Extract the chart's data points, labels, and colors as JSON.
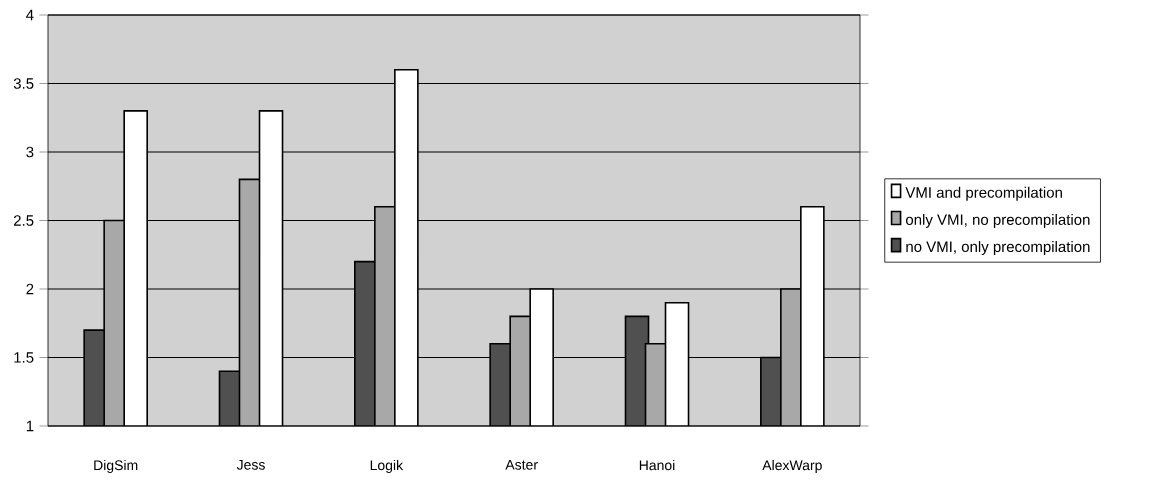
{
  "chart_data": {
    "type": "bar",
    "categories": [
      "DigSim",
      "Jess",
      "Logik",
      "Aster",
      "Hanoi",
      "AlexWarp"
    ],
    "series": [
      {
        "name": "no VMI, only precompilation",
        "color": "#505050",
        "values": [
          1.7,
          1.4,
          2.2,
          1.6,
          1.8,
          1.5
        ]
      },
      {
        "name": "only VMI, no precompilation",
        "color": "#a8a8a8",
        "values": [
          2.5,
          2.8,
          2.6,
          1.8,
          1.6,
          2.0
        ]
      },
      {
        "name": "VMI and precompilation",
        "color": "#ffffff",
        "values": [
          3.3,
          3.3,
          3.6,
          2.0,
          1.9,
          2.6
        ]
      }
    ],
    "ylim": [
      1,
      4
    ],
    "yticks": [
      1,
      1.5,
      2,
      2.5,
      3,
      3.5,
      4
    ],
    "grid": "y",
    "legend": "right"
  }
}
